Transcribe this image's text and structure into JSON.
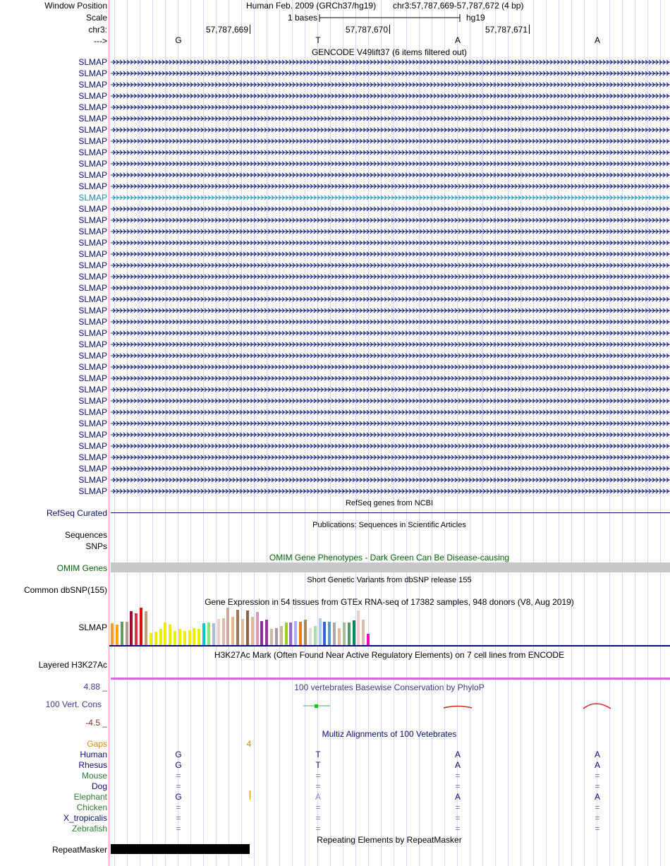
{
  "ruler": {
    "window_position_label": "Window Position",
    "assembly": "Human Feb. 2009 (GRCh37/hg19)",
    "position": "chr3:57,787,669-57,787,672 (4 bp)",
    "scale_label": "Scale",
    "scale_text": "1 bases",
    "scale_db": "hg19",
    "chrom_label": "chr3:",
    "coords": [
      "57,787,669",
      "57,787,670",
      "57,787,671"
    ],
    "strand_label": "--->",
    "bases": [
      "G",
      "T",
      "A",
      "A"
    ]
  },
  "gencode": {
    "title": "GENCODE V49lift37 (6 items filtered out)",
    "gene_name": "SLMAP",
    "row_count": 39,
    "highlight_row": 12,
    "color": "#0c0c78",
    "highlight_color": "#1a8cbf"
  },
  "refseq": {
    "title": "RefSeq genes from NCBI",
    "label": "RefSeq Curated",
    "color": "#0c0c78"
  },
  "publications": {
    "title": "Publications: Sequences in Scientific Articles",
    "label_sequences": "Sequences",
    "label_snps": "SNPs"
  },
  "omim": {
    "title": "OMIM Gene Phenotypes - Dark Green Can Be Disease-causing",
    "label": "OMIM Genes",
    "color": "#006400",
    "bar_color": "#c8c8c8"
  },
  "dbsnp": {
    "title": "Short Genetic Variants from dbSNP release 155",
    "label": "Common dbSNP(155)"
  },
  "gtex": {
    "title": "Gene Expression in 54 tissues from GTEx RNA-seq of 17382 samples, 948 donors (V8, Aug 2019)",
    "label": "SLMAP",
    "bars": [
      {
        "value": 0.58,
        "color": "#ff9933"
      },
      {
        "value": 0.55,
        "color": "#ffaa00"
      },
      {
        "value": 0.62,
        "color": "#669966"
      },
      {
        "value": 0.63,
        "color": "#bb9988"
      },
      {
        "value": 0.91,
        "color": "#aa0033"
      },
      {
        "value": 0.85,
        "color": "#dd3344"
      },
      {
        "value": 1.0,
        "color": "#ee0000"
      },
      {
        "value": 0.9,
        "color": "#cc9977"
      },
      {
        "value": 0.33,
        "color": "#eeee00"
      },
      {
        "value": 0.35,
        "color": "#eeee00"
      },
      {
        "value": 0.43,
        "color": "#eeee00"
      },
      {
        "value": 0.6,
        "color": "#eeee00"
      },
      {
        "value": 0.55,
        "color": "#eeee00"
      },
      {
        "value": 0.38,
        "color": "#eeee00"
      },
      {
        "value": 0.44,
        "color": "#eeee00"
      },
      {
        "value": 0.37,
        "color": "#eeee00"
      },
      {
        "value": 0.4,
        "color": "#eeee00"
      },
      {
        "value": 0.45,
        "color": "#eeee00"
      },
      {
        "value": 0.44,
        "color": "#eeee00"
      },
      {
        "value": 0.58,
        "color": "#00cccc"
      },
      {
        "value": 0.6,
        "color": "#99dd77"
      },
      {
        "value": 0.59,
        "color": "#aabbdd"
      },
      {
        "value": 0.7,
        "color": "#eecccc"
      },
      {
        "value": 0.71,
        "color": "#ddbbaa"
      },
      {
        "value": 1.0,
        "color": "#ccaa99"
      },
      {
        "value": 0.75,
        "color": "#ddbb88"
      },
      {
        "value": 0.95,
        "color": "#997755"
      },
      {
        "value": 0.7,
        "color": "#ddbb99"
      },
      {
        "value": 0.92,
        "color": "#886644"
      },
      {
        "value": 0.75,
        "color": "#ddbb99"
      },
      {
        "value": 0.88,
        "color": "#dd99bb"
      },
      {
        "value": 0.65,
        "color": "#883399"
      },
      {
        "value": 0.68,
        "color": "#993399"
      },
      {
        "value": 0.44,
        "color": "#ccbbaa"
      },
      {
        "value": 0.45,
        "color": "#aa99aa"
      },
      {
        "value": 0.5,
        "color": "#ccbb99"
      },
      {
        "value": 0.61,
        "color": "#99cc33"
      },
      {
        "value": 0.6,
        "color": "#9966cc"
      },
      {
        "value": 0.65,
        "color": "#aaaaff"
      },
      {
        "value": 0.62,
        "color": "#ff7700"
      },
      {
        "value": 0.67,
        "color": "#aa8855"
      },
      {
        "value": 0.45,
        "color": "#dddddd"
      },
      {
        "value": 0.5,
        "color": "#aaddaa"
      },
      {
        "value": 0.72,
        "color": "#aaccee"
      },
      {
        "value": 0.63,
        "color": "#3366dd"
      },
      {
        "value": 0.62,
        "color": "#5599cc"
      },
      {
        "value": 0.61,
        "color": "#aaaaaa"
      },
      {
        "value": 0.45,
        "color": "#ddbb99"
      },
      {
        "value": 0.61,
        "color": "#aabb99"
      },
      {
        "value": 0.6,
        "color": "#559966"
      },
      {
        "value": 0.66,
        "color": "#008855"
      },
      {
        "value": 0.92,
        "color": "#eecccc"
      },
      {
        "value": 0.68,
        "color": "#ddbbaa"
      },
      {
        "value": 0.3,
        "color": "#ff00bb"
      }
    ]
  },
  "h3k27ac": {
    "title": "H3K27Ac Mark (Often Found Near Active Regulatory Elements) on 7 cell lines from ENCODE",
    "label": "Layered H3K27Ac",
    "line_color": "#dd66dd"
  },
  "phylop": {
    "title": "100 vertebrates Basewise Conservation by PhyloP",
    "label": "100 Vert. Cons",
    "max_label": "4.88 _",
    "min_label": "-4.5 _",
    "color": "#3a3a8c",
    "max_color": "#3a3a8c",
    "min_color": "#8c2a2a"
  },
  "multiz": {
    "title": "Multiz Alignments of 100 Vetebrates",
    "gaps_label": "Gaps",
    "gap_count": "4",
    "species": [
      {
        "name": "Human",
        "color": "#0c0c78",
        "bases": [
          "G",
          "T",
          "A",
          "A"
        ]
      },
      {
        "name": "Rhesus",
        "color": "#0c0c78",
        "bases": [
          "G",
          "T",
          "A",
          "A"
        ]
      },
      {
        "name": "Mouse",
        "color": "#2e7d32",
        "bases": [
          "=",
          "=",
          "=",
          "="
        ]
      },
      {
        "name": "Dog",
        "color": "#0c0c78",
        "bases": [
          "=",
          "=",
          "=",
          "="
        ]
      },
      {
        "name": "Elephant",
        "color": "#2e7d32",
        "bases": [
          "G",
          "A",
          "A",
          "A"
        ]
      },
      {
        "name": "Chicken",
        "color": "#2e7d32",
        "bases": [
          "=",
          "=",
          "=",
          "="
        ]
      },
      {
        "name": "X_tropicalis",
        "color": "#0c0c78",
        "bases": [
          "=",
          "=",
          "=",
          "="
        ]
      },
      {
        "name": "Zebrafish",
        "color": "#2e7d32",
        "bases": [
          "=",
          "=",
          "=",
          "="
        ]
      }
    ]
  },
  "repeatmasker": {
    "title": "Repeating Elements by RepeatMasker",
    "label": "RepeatMasker"
  }
}
